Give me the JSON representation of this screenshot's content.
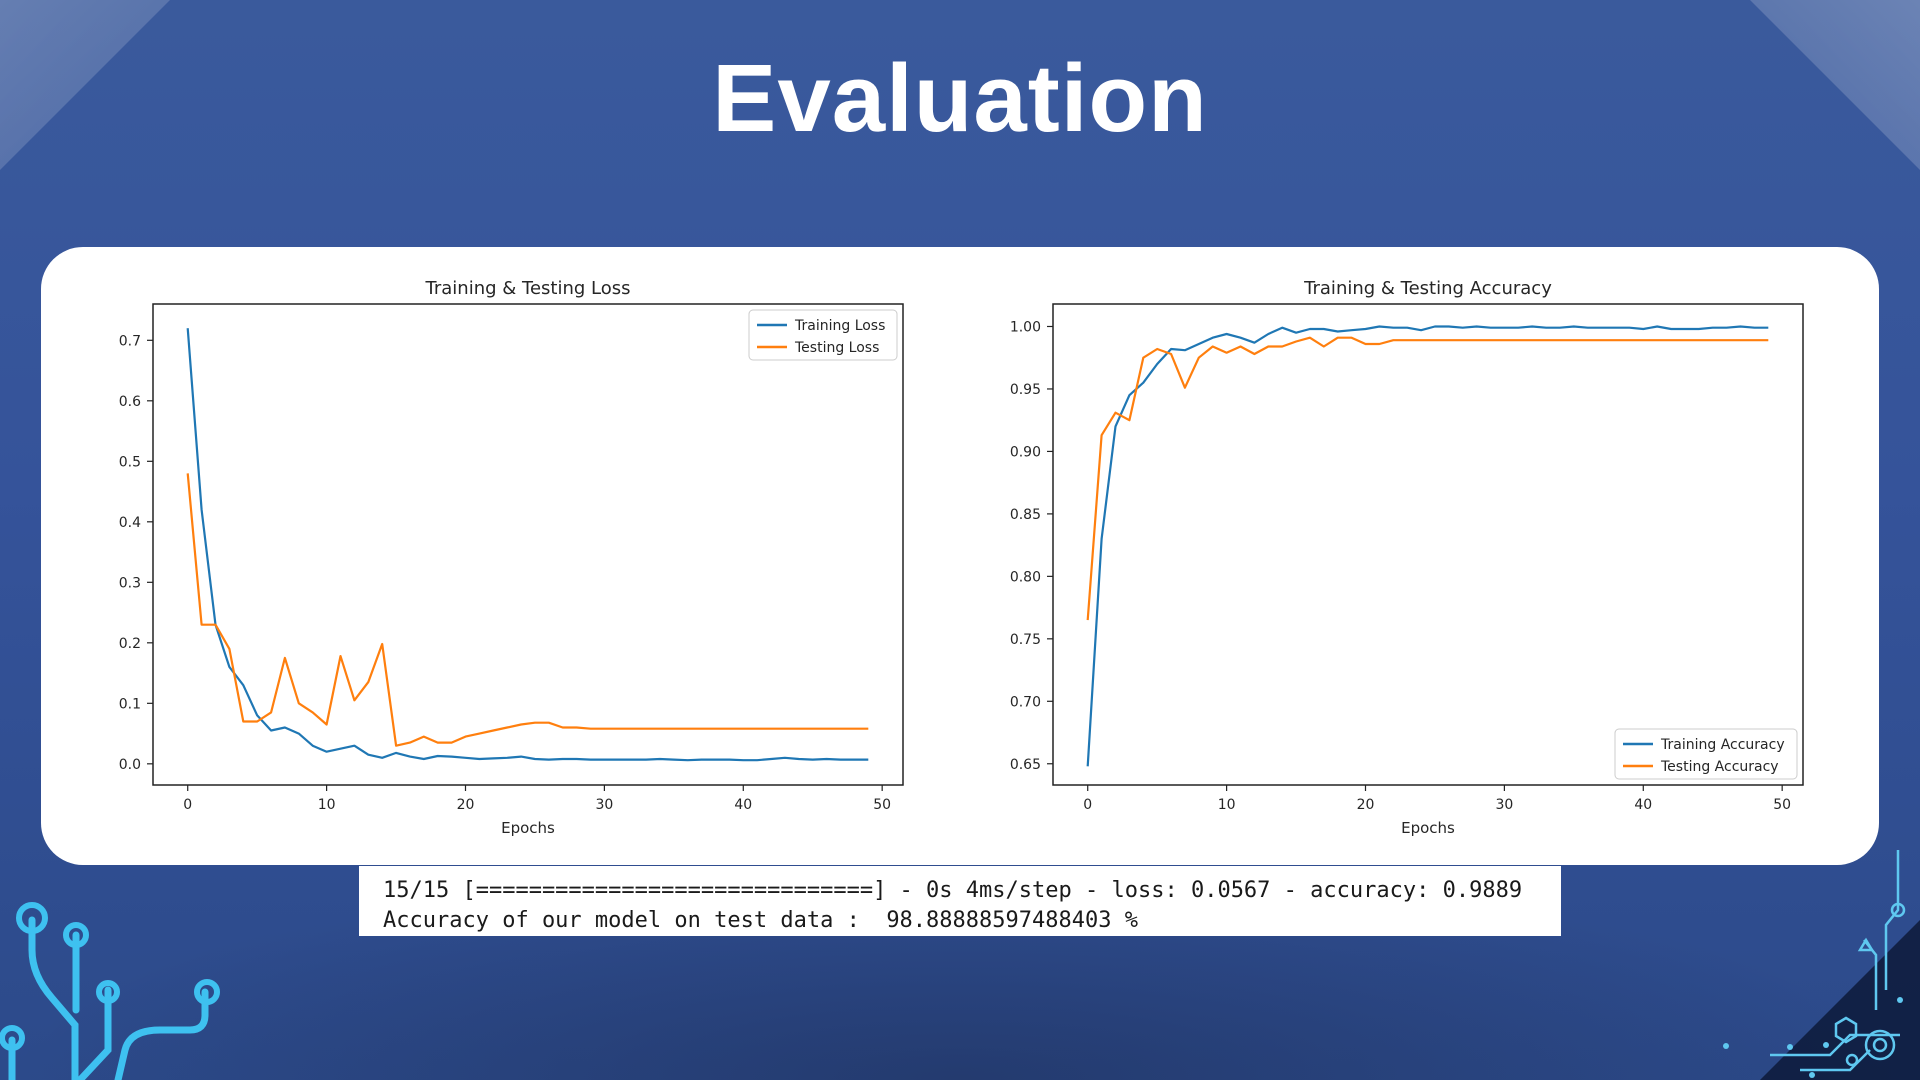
{
  "slide": {
    "title": "Evaluation",
    "colors": {
      "background": "#35539a",
      "card": "#ffffff",
      "accent_circuit": "#3ec1f0"
    }
  },
  "console": {
    "line1": "15/15 [==============================] - 0s 4ms/step - loss: 0.0567 - accuracy: 0.9889",
    "line2": "Accuracy of our model on test data :  98.88888597488403 %"
  },
  "chart_data": [
    {
      "type": "line",
      "title": "Training & Testing Loss",
      "xlabel": "Epochs",
      "ylabel": "",
      "xlim": [
        -2.5,
        51.5
      ],
      "ylim": [
        -0.035,
        0.76
      ],
      "xticks": [
        0,
        10,
        20,
        30,
        40,
        50
      ],
      "yticks": [
        0.0,
        0.1,
        0.2,
        0.3,
        0.4,
        0.5,
        0.6,
        0.7
      ],
      "legend": "top-right",
      "grid": false,
      "x": [
        0,
        1,
        2,
        3,
        4,
        5,
        6,
        7,
        8,
        9,
        10,
        11,
        12,
        13,
        14,
        15,
        16,
        17,
        18,
        19,
        20,
        21,
        22,
        23,
        24,
        25,
        26,
        27,
        28,
        29,
        30,
        31,
        32,
        33,
        34,
        35,
        36,
        37,
        38,
        39,
        40,
        41,
        42,
        43,
        44,
        45,
        46,
        47,
        48,
        49
      ],
      "series": [
        {
          "name": "Training Loss",
          "color": "#1f77b4",
          "values": [
            0.72,
            0.42,
            0.23,
            0.16,
            0.13,
            0.08,
            0.055,
            0.06,
            0.05,
            0.03,
            0.02,
            0.025,
            0.03,
            0.015,
            0.01,
            0.018,
            0.012,
            0.008,
            0.013,
            0.012,
            0.01,
            0.008,
            0.009,
            0.01,
            0.012,
            0.008,
            0.007,
            0.008,
            0.008,
            0.007,
            0.007,
            0.007,
            0.007,
            0.007,
            0.008,
            0.007,
            0.006,
            0.007,
            0.007,
            0.007,
            0.006,
            0.006,
            0.008,
            0.01,
            0.008,
            0.007,
            0.008,
            0.007,
            0.007,
            0.007
          ]
        },
        {
          "name": "Testing Loss",
          "color": "#ff7f0e",
          "values": [
            0.48,
            0.23,
            0.23,
            0.19,
            0.07,
            0.07,
            0.085,
            0.175,
            0.1,
            0.085,
            0.065,
            0.178,
            0.105,
            0.135,
            0.198,
            0.03,
            0.035,
            0.045,
            0.035,
            0.035,
            0.045,
            0.05,
            0.055,
            0.06,
            0.065,
            0.068,
            0.068,
            0.06,
            0.06,
            0.058,
            0.058,
            0.058,
            0.058,
            0.058,
            0.058,
            0.058,
            0.058,
            0.058,
            0.058,
            0.058,
            0.058,
            0.058,
            0.058,
            0.058,
            0.058,
            0.058,
            0.058,
            0.058,
            0.058,
            0.058
          ]
        }
      ]
    },
    {
      "type": "line",
      "title": "Training & Testing Accuracy",
      "xlabel": "Epochs",
      "ylabel": "",
      "xlim": [
        -2.5,
        51.5
      ],
      "ylim": [
        0.633,
        1.018
      ],
      "xticks": [
        0,
        10,
        20,
        30,
        40,
        50
      ],
      "yticks": [
        0.65,
        0.7,
        0.75,
        0.8,
        0.85,
        0.9,
        0.95,
        1.0
      ],
      "legend": "bottom-right",
      "grid": false,
      "x": [
        0,
        1,
        2,
        3,
        4,
        5,
        6,
        7,
        8,
        9,
        10,
        11,
        12,
        13,
        14,
        15,
        16,
        17,
        18,
        19,
        20,
        21,
        22,
        23,
        24,
        25,
        26,
        27,
        28,
        29,
        30,
        31,
        32,
        33,
        34,
        35,
        36,
        37,
        38,
        39,
        40,
        41,
        42,
        43,
        44,
        45,
        46,
        47,
        48,
        49
      ],
      "series": [
        {
          "name": "Training Accuracy",
          "color": "#1f77b4",
          "values": [
            0.648,
            0.83,
            0.92,
            0.945,
            0.955,
            0.97,
            0.982,
            0.981,
            0.986,
            0.991,
            0.994,
            0.991,
            0.987,
            0.994,
            0.999,
            0.995,
            0.998,
            0.998,
            0.996,
            0.997,
            0.998,
            1.0,
            0.999,
            0.999,
            0.997,
            1.0,
            1.0,
            0.999,
            1.0,
            0.999,
            0.999,
            0.999,
            1.0,
            0.999,
            0.999,
            1.0,
            0.999,
            0.999,
            0.999,
            0.999,
            0.998,
            1.0,
            0.998,
            0.998,
            0.998,
            0.999,
            0.999,
            1.0,
            0.999,
            0.999
          ]
        },
        {
          "name": "Testing Accuracy",
          "color": "#ff7f0e",
          "values": [
            0.765,
            0.913,
            0.931,
            0.925,
            0.975,
            0.982,
            0.978,
            0.951,
            0.975,
            0.984,
            0.979,
            0.984,
            0.978,
            0.984,
            0.984,
            0.988,
            0.991,
            0.984,
            0.991,
            0.991,
            0.986,
            0.986,
            0.989,
            0.989,
            0.989,
            0.989,
            0.989,
            0.989,
            0.989,
            0.989,
            0.989,
            0.989,
            0.989,
            0.989,
            0.989,
            0.989,
            0.989,
            0.989,
            0.989,
            0.989,
            0.989,
            0.989,
            0.989,
            0.989,
            0.989,
            0.989,
            0.989,
            0.989,
            0.989,
            0.989
          ]
        }
      ]
    }
  ]
}
